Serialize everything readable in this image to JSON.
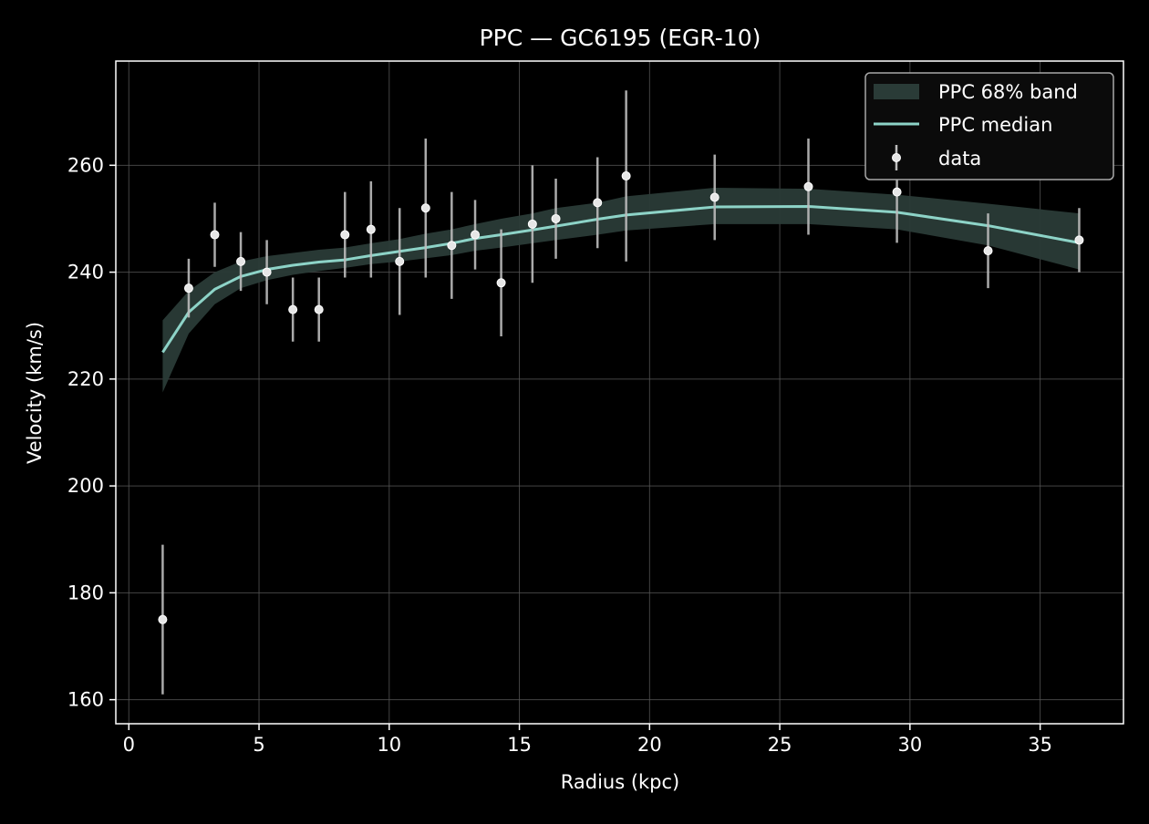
{
  "chart_data": {
    "type": "line",
    "title": "PPC — GC6195 (EGR-10)",
    "xlabel": "Radius (kpc)",
    "ylabel": "Velocity (km/s)",
    "xlim": [
      -0.5,
      38.2
    ],
    "ylim": [
      155.5,
      279.5
    ],
    "xticks": [
      0,
      5,
      10,
      15,
      20,
      25,
      30,
      35
    ],
    "yticks": [
      160,
      180,
      200,
      220,
      240,
      260
    ],
    "grid": true,
    "legend_position": "top-right",
    "colors": {
      "background": "#000000",
      "band": "#2a3b37",
      "median": "#8dd3c7",
      "errorbar": "#bdbdbd",
      "marker": "#e6e6e6",
      "grid": "#555555",
      "axes": "#ffffff"
    },
    "series": [
      {
        "name": "PPC 68% band",
        "kind": "band",
        "x": [
          1.3,
          2.3,
          3.3,
          4.3,
          5.3,
          6.3,
          7.3,
          8.3,
          9.3,
          10.4,
          11.4,
          12.4,
          13.3,
          14.3,
          15.5,
          16.4,
          18.0,
          19.1,
          22.5,
          26.1,
          29.5,
          33.0,
          36.5
        ],
        "lower": [
          217.5,
          228.5,
          234.0,
          237.0,
          238.5,
          239.5,
          240.2,
          240.8,
          241.5,
          242.0,
          242.6,
          243.2,
          244.0,
          244.6,
          245.4,
          246.0,
          247.0,
          247.8,
          249.0,
          249.0,
          248.0,
          245.0,
          240.5
        ],
        "upper": [
          231.0,
          236.5,
          240.0,
          242.0,
          243.0,
          243.6,
          244.2,
          244.6,
          245.4,
          246.2,
          247.2,
          248.0,
          249.0,
          250.0,
          251.0,
          252.0,
          253.0,
          254.2,
          255.8,
          255.6,
          254.5,
          252.8,
          251.0
        ]
      },
      {
        "name": "PPC median",
        "kind": "line",
        "x": [
          1.3,
          2.3,
          3.3,
          4.3,
          5.3,
          6.3,
          7.3,
          8.3,
          9.3,
          10.4,
          11.4,
          12.4,
          13.3,
          14.3,
          15.5,
          16.4,
          18.0,
          19.1,
          22.5,
          26.1,
          29.5,
          33.0,
          36.5
        ],
        "values": [
          225.0,
          232.5,
          236.8,
          239.2,
          240.5,
          241.3,
          241.9,
          242.3,
          243.1,
          243.9,
          244.6,
          245.4,
          246.3,
          247.0,
          247.9,
          248.6,
          249.9,
          250.7,
          252.2,
          252.3,
          251.2,
          248.7,
          245.5
        ]
      },
      {
        "name": "data",
        "kind": "errorbar",
        "x": [
          1.3,
          2.3,
          3.3,
          4.3,
          5.3,
          6.3,
          7.3,
          8.3,
          9.3,
          10.4,
          11.4,
          12.4,
          13.3,
          14.3,
          15.5,
          16.4,
          18.0,
          19.1,
          22.5,
          26.1,
          29.5,
          33.0,
          36.5
        ],
        "values": [
          175,
          237,
          247,
          242,
          240,
          233,
          233,
          247,
          248,
          242,
          252,
          245,
          247,
          238,
          249,
          250,
          253,
          258,
          254,
          256,
          255,
          244,
          246
        ],
        "errors": [
          14,
          5.5,
          6,
          5.5,
          6,
          6,
          6,
          8,
          9,
          10,
          13,
          10,
          6.5,
          10,
          11,
          7.5,
          8.5,
          16,
          8,
          9,
          9.5,
          7,
          6
        ]
      }
    ]
  }
}
